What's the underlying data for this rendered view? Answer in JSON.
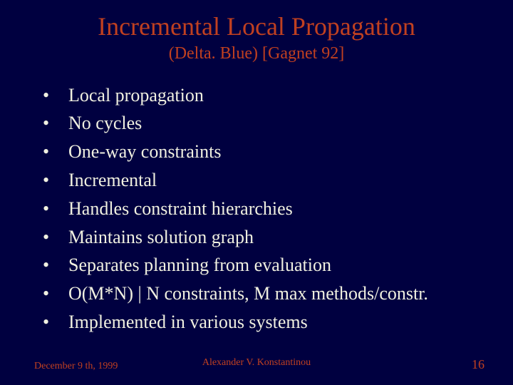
{
  "colors": {
    "background": "#000040",
    "accent": "#c04020",
    "text": "#f0f0e0"
  },
  "typography": {
    "title_fontsize": 36,
    "subtitle_fontsize": 24,
    "body_fontsize": 26,
    "footer_fontsize": 14,
    "slide_number_fontsize": 18,
    "font_family": "Times New Roman"
  },
  "title": "Incremental Local Propagation",
  "subtitle": "(Delta. Blue)  [Gagnet 92]",
  "bullets": [
    "Local propagation",
    "No cycles",
    "One-way constraints",
    "Incremental",
    "Handles constraint hierarchies",
    "Maintains solution graph",
    "Separates planning from evaluation",
    "O(M*N) | N constraints, M max methods/constr.",
    "Implemented in various systems"
  ],
  "footer": {
    "date": "December 9 th, 1999",
    "author": "Alexander V. Konstantinou",
    "slide_number": "16"
  }
}
